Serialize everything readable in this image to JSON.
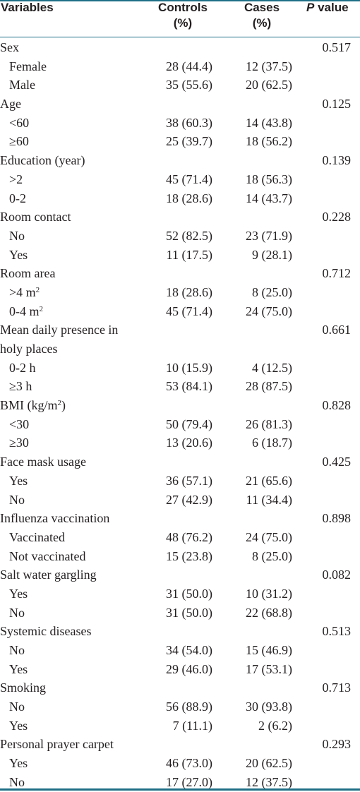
{
  "header": {
    "variables": "Variables",
    "controls_line1": "Controls",
    "controls_line2": "(%)",
    "cases_line1": "Cases",
    "cases_line2": "(%)",
    "p_italic": "P",
    "p_rest": " value"
  },
  "rows": [
    {
      "label": "Sex",
      "controls": "",
      "cases": "",
      "p": "0.517",
      "sub": false
    },
    {
      "label": "Female",
      "controls": "28 (44.4)",
      "cases": "12 (37.5)",
      "p": "",
      "sub": true
    },
    {
      "label": "Male",
      "controls": "35 (55.6)",
      "cases": "20 (62.5)",
      "p": "",
      "sub": true
    },
    {
      "label": "Age",
      "controls": "",
      "cases": "",
      "p": "0.125",
      "sub": false
    },
    {
      "label": "<60",
      "controls": "38 (60.3)",
      "cases": "14 (43.8)",
      "p": "",
      "sub": true
    },
    {
      "label": "≥60",
      "controls": "25 (39.7)",
      "cases": "18 (56.2)",
      "p": "",
      "sub": true
    },
    {
      "label": "Education (year)",
      "controls": "",
      "cases": "",
      "p": "0.139",
      "sub": false
    },
    {
      "label": ">2",
      "controls": "45 (71.4)",
      "cases": "18 (56.3)",
      "p": "",
      "sub": true
    },
    {
      "label": "0-2",
      "controls": "18 (28.6)",
      "cases": "14 (43.7)",
      "p": "",
      "sub": true
    },
    {
      "label": "Room contact",
      "controls": "",
      "cases": "",
      "p": "0.228",
      "sub": false
    },
    {
      "label": "No",
      "controls": "52 (82.5)",
      "cases": "23 (71.9)",
      "p": "",
      "sub": true
    },
    {
      "label": "Yes",
      "controls": "11 (17.5)",
      "cases": "9 (28.1)",
      "p": "",
      "sub": true
    },
    {
      "label": "Room area",
      "controls": "",
      "cases": "",
      "p": "0.712",
      "sub": false
    },
    {
      "label": ">4 m",
      "sup": "2",
      "controls": "18 (28.6)",
      "cases": "8 (25.0)",
      "p": "",
      "sub": true
    },
    {
      "label": "0-4 m",
      "sup": "2",
      "controls": "45 (71.4)",
      "cases": "24 (75.0)",
      "p": "",
      "sub": true
    },
    {
      "label": "Mean daily presence in holy places",
      "controls": "",
      "cases": "",
      "p": "0.661",
      "sub": false,
      "tall": true
    },
    {
      "label": "0-2 h",
      "controls": "10 (15.9)",
      "cases": "4 (12.5)",
      "p": "",
      "sub": true
    },
    {
      "label": "≥3 h",
      "controls": "53 (84.1)",
      "cases": "28 (87.5)",
      "p": "",
      "sub": true
    },
    {
      "label": "BMI (kg/m",
      "sup": "2",
      "label_after": ")",
      "controls": "",
      "cases": "",
      "p": "0.828",
      "sub": false
    },
    {
      "label": "<30",
      "controls": "50 (79.4)",
      "cases": "26 (81.3)",
      "p": "",
      "sub": true
    },
    {
      "label": "≥30",
      "controls": "13 (20.6)",
      "cases": "6 (18.7)",
      "p": "",
      "sub": true
    },
    {
      "label": "Face mask usage",
      "controls": "",
      "cases": "",
      "p": "0.425",
      "sub": false
    },
    {
      "label": "Yes",
      "controls": "36 (57.1)",
      "cases": "21 (65.6)",
      "p": "",
      "sub": true
    },
    {
      "label": "No",
      "controls": "27 (42.9)",
      "cases": "11 (34.4)",
      "p": "",
      "sub": true
    },
    {
      "label": "Influenza vaccination",
      "controls": "",
      "cases": "",
      "p": "0.898",
      "sub": false
    },
    {
      "label": "Vaccinated",
      "controls": "48 (76.2)",
      "cases": "24 (75.0)",
      "p": "",
      "sub": true
    },
    {
      "label": "Not vaccinated",
      "controls": "15 (23.8)",
      "cases": "8 (25.0)",
      "p": "",
      "sub": true
    },
    {
      "label": "Salt water gargling",
      "controls": "",
      "cases": "",
      "p": "0.082",
      "sub": false
    },
    {
      "label": "Yes",
      "controls": "31 (50.0)",
      "cases": "10 (31.2)",
      "p": "",
      "sub": true
    },
    {
      "label": "No",
      "controls": "31 (50.0)",
      "cases": "22 (68.8)",
      "p": "",
      "sub": true
    },
    {
      "label": "Systemic diseases",
      "controls": "",
      "cases": "",
      "p": "0.513",
      "sub": false
    },
    {
      "label": "No",
      "controls": "34 (54.0)",
      "cases": "15 (46.9)",
      "p": "",
      "sub": true
    },
    {
      "label": "Yes",
      "controls": "29 (46.0)",
      "cases": "17 (53.1)",
      "p": "",
      "sub": true
    },
    {
      "label": "Smoking",
      "controls": "",
      "cases": "",
      "p": "0.713",
      "sub": false
    },
    {
      "label": "No",
      "controls": "56 (88.9)",
      "cases": "30 (93.8)",
      "p": "",
      "sub": true
    },
    {
      "label": "Yes",
      "controls": "7 (11.1)",
      "cases": "2 (6.2)",
      "p": "",
      "sub": true
    },
    {
      "label": "Personal prayer carpet",
      "controls": "",
      "cases": "",
      "p": "0.293",
      "sub": false
    },
    {
      "label": "Yes",
      "controls": "46 (73.0)",
      "cases": "20 (62.5)",
      "p": "",
      "sub": true
    },
    {
      "label": "No",
      "controls": "17 (27.0)",
      "cases": "12 (37.5)",
      "p": "",
      "sub": true
    }
  ]
}
